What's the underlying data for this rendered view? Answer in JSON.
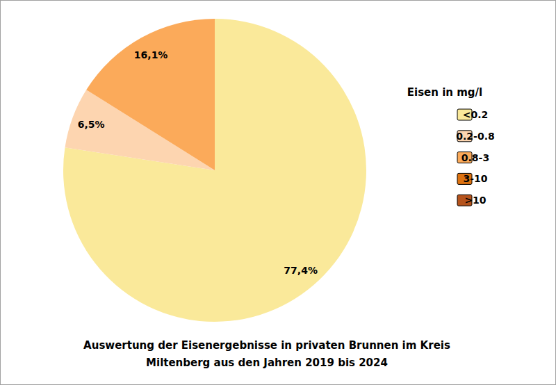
{
  "chart_data": {
    "type": "pie",
    "title": "Auswertung der Eisenergebnisse in privaten Brunnen im Kreis\nMiltenberg aus den Jahren 2019 bis 2024",
    "legend_title": "Eisen in mg/l",
    "categories": [
      "<0.2",
      "0.2-0.8",
      "0.8-3",
      "3-10",
      ">10"
    ],
    "values": [
      77.4,
      6.5,
      16.1,
      0,
      0
    ],
    "value_labels": [
      "77,4%",
      "6,5%",
      "16,1%",
      null,
      null
    ],
    "colors": [
      "#fae99a",
      "#fdd5b0",
      "#fbaa5a",
      "#dd7210",
      "#b5531c"
    ],
    "data_labels": true,
    "legend": "right"
  }
}
